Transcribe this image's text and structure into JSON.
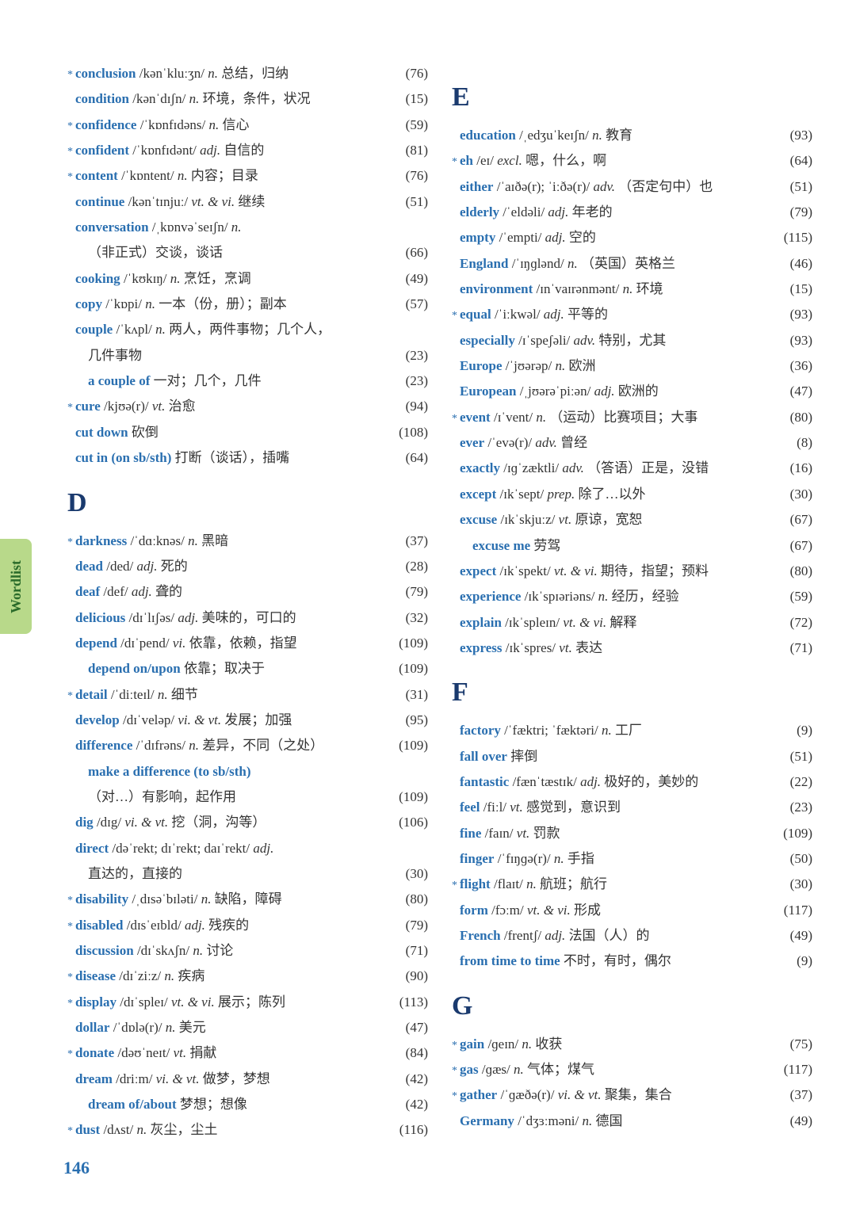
{
  "tab_label": "Wordlist",
  "page_number": "146",
  "colors": {
    "word_color": "#2a6fb0",
    "text_color": "#333333",
    "section_color": "#1a3a6e",
    "tab_bg": "#b8d98a",
    "tab_text": "#2a6b2a",
    "background": "#ffffff"
  },
  "typography": {
    "body_fontsize": 17,
    "section_fontsize": 34,
    "line_height": 1.55
  },
  "left": [
    {
      "star": true,
      "word": "conclusion",
      "pron": "/kənˈkluːʒn/",
      "pos": "n.",
      "def": "总结，归纳",
      "page": "76"
    },
    {
      "star": false,
      "word": "condition",
      "pron": "/kənˈdɪʃn/",
      "pos": "n.",
      "def": "环境，条件，状况",
      "page": "15"
    },
    {
      "star": true,
      "word": "confidence",
      "pron": "/ˈkɒnfɪdəns/",
      "pos": "n.",
      "def": "信心",
      "page": "59"
    },
    {
      "star": true,
      "word": "confident",
      "pron": "/ˈkɒnfɪdənt/",
      "pos": "adj.",
      "def": "自信的",
      "page": "81"
    },
    {
      "star": true,
      "word": "content",
      "pron": "/ˈkɒntent/",
      "pos": "n.",
      "def": "内容；目录",
      "page": "76"
    },
    {
      "star": false,
      "word": "continue",
      "pron": "/kənˈtɪnjuː/",
      "pos": "vt. & vi.",
      "def": "继续",
      "page": "51"
    },
    {
      "star": false,
      "word": "conversation",
      "pron": "/ˌkɒnvəˈseɪʃn/",
      "pos": "n.",
      "def": "",
      "page": ""
    },
    {
      "star": false,
      "word": "",
      "pron": "",
      "pos": "",
      "def": "（非正式）交谈，谈话",
      "page": "66",
      "indent": true,
      "plain": true
    },
    {
      "star": false,
      "word": "cooking",
      "pron": "/ˈkʊkɪŋ/",
      "pos": "n.",
      "def": "烹饪，烹调",
      "page": "49"
    },
    {
      "star": false,
      "word": "copy",
      "pron": "/ˈkɒpi/",
      "pos": "n.",
      "def": "一本（份，册）；副本",
      "page": "57"
    },
    {
      "star": false,
      "word": "couple",
      "pron": "/ˈkʌpl/",
      "pos": "n.",
      "def": "两人，两件事物；几个人，",
      "page": ""
    },
    {
      "star": false,
      "word": "",
      "pron": "",
      "pos": "",
      "def": "几件事物",
      "page": "23",
      "indent": true,
      "plain": true
    },
    {
      "star": false,
      "word": "a couple of",
      "pron": "",
      "pos": "",
      "def": "一对；几个，几件",
      "page": "23",
      "indent": true
    },
    {
      "star": true,
      "word": "cure",
      "pron": "/kjʊə(r)/",
      "pos": "vt.",
      "def": "治愈",
      "page": "94"
    },
    {
      "star": false,
      "word": "cut down",
      "pron": "",
      "pos": "",
      "def": "砍倒",
      "page": "108"
    },
    {
      "star": false,
      "word": "cut in (on sb/sth)",
      "pron": "",
      "pos": "",
      "def": "打断（谈话），插嘴",
      "page": "64"
    }
  ],
  "section_D": "D",
  "d_list": [
    {
      "star": true,
      "word": "darkness",
      "pron": "/ˈdɑːknəs/",
      "pos": "n.",
      "def": "黑暗",
      "page": "37"
    },
    {
      "star": false,
      "word": "dead",
      "pron": "/ded/",
      "pos": "adj.",
      "def": "死的",
      "page": "28"
    },
    {
      "star": false,
      "word": "deaf",
      "pron": "/def/",
      "pos": "adj.",
      "def": "聋的",
      "page": "79"
    },
    {
      "star": false,
      "word": "delicious",
      "pron": "/dɪˈlɪʃəs/",
      "pos": "adj.",
      "def": "美味的，可口的",
      "page": "32"
    },
    {
      "star": false,
      "word": "depend",
      "pron": "/dɪˈpend/",
      "pos": "vi.",
      "def": "依靠，依赖，指望",
      "page": "109"
    },
    {
      "star": false,
      "word": "depend on/upon",
      "pron": "",
      "pos": "",
      "def": "依靠；取决于",
      "page": "109",
      "indent": true
    },
    {
      "star": true,
      "word": "detail",
      "pron": "/ˈdiːteɪl/",
      "pos": "n.",
      "def": "细节",
      "page": "31"
    },
    {
      "star": false,
      "word": "develop",
      "pron": "/dɪˈveləp/",
      "pos": "vi. & vt.",
      "def": "发展；加强",
      "page": "95"
    },
    {
      "star": false,
      "word": "difference",
      "pron": "/ˈdɪfrəns/",
      "pos": "n.",
      "def": "差异，不同（之处）",
      "page": "109"
    },
    {
      "star": false,
      "word": "make a difference (to sb/sth)",
      "pron": "",
      "pos": "",
      "def": "",
      "page": "",
      "indent": true
    },
    {
      "star": false,
      "word": "",
      "pron": "",
      "pos": "",
      "def": "（对…）有影响，起作用",
      "page": "109",
      "indent": true,
      "plain": true
    },
    {
      "star": false,
      "word": "dig",
      "pron": "/dɪg/",
      "pos": "vi. & vt.",
      "def": "挖（洞，沟等）",
      "page": "106"
    },
    {
      "star": false,
      "word": "direct",
      "pron": "/dəˈrekt; dɪˈrekt; daɪˈrekt/",
      "pos": "adj.",
      "def": "",
      "page": ""
    },
    {
      "star": false,
      "word": "",
      "pron": "",
      "pos": "",
      "def": "直达的，直接的",
      "page": "30",
      "indent": true,
      "plain": true
    },
    {
      "star": true,
      "word": "disability",
      "pron": "/ˌdɪsəˈbɪləti/",
      "pos": "n.",
      "def": "缺陷，障碍",
      "page": "80"
    },
    {
      "star": true,
      "word": "disabled",
      "pron": "/dɪsˈeɪbld/",
      "pos": "adj.",
      "def": "残疾的",
      "page": "79"
    },
    {
      "star": false,
      "word": "discussion",
      "pron": "/dɪˈskʌʃn/",
      "pos": "n.",
      "def": "讨论",
      "page": "71"
    },
    {
      "star": true,
      "word": "disease",
      "pron": "/dɪˈziːz/",
      "pos": "n.",
      "def": "疾病",
      "page": "90"
    },
    {
      "star": true,
      "word": "display",
      "pron": "/dɪˈspleɪ/",
      "pos": "vt. & vi.",
      "def": "展示；陈列",
      "page": "113"
    },
    {
      "star": false,
      "word": "dollar",
      "pron": "/ˈdɒlə(r)/",
      "pos": "n.",
      "def": "美元",
      "page": "47"
    },
    {
      "star": true,
      "word": "donate",
      "pron": "/dəʊˈneɪt/",
      "pos": "vt.",
      "def": "捐献",
      "page": "84"
    },
    {
      "star": false,
      "word": "dream",
      "pron": "/driːm/",
      "pos": "vi. & vt.",
      "def": "做梦，梦想",
      "page": "42"
    },
    {
      "star": false,
      "word": "dream of/about",
      "pron": "",
      "pos": "",
      "def": "梦想；想像",
      "page": "42",
      "indent": true
    },
    {
      "star": true,
      "word": "dust",
      "pron": "/dʌst/",
      "pos": "n.",
      "def": "灰尘，尘土",
      "page": "116"
    }
  ],
  "section_E": "E",
  "e_list": [
    {
      "star": false,
      "word": "education",
      "pron": "/ˌedʒuˈkeɪʃn/",
      "pos": "n.",
      "def": "教育",
      "page": "93"
    },
    {
      "star": true,
      "word": "eh",
      "pron": "/eɪ/",
      "pos": "excl.",
      "def": "嗯，什么，啊",
      "page": "64"
    },
    {
      "star": false,
      "word": "either",
      "pron": "/ˈaɪðə(r); ˈiːðə(r)/",
      "pos": "adv.",
      "def": "（否定句中）也",
      "page": "51"
    },
    {
      "star": false,
      "word": "elderly",
      "pron": "/ˈeldəli/",
      "pos": "adj.",
      "def": "年老的",
      "page": "79"
    },
    {
      "star": false,
      "word": "empty",
      "pron": "/ˈempti/",
      "pos": "adj.",
      "def": "空的",
      "page": "115"
    },
    {
      "star": false,
      "word": "England",
      "pron": "/ˈɪŋɡlənd/",
      "pos": "n.",
      "def": "（英国）英格兰",
      "page": "46"
    },
    {
      "star": false,
      "word": "environment",
      "pron": "/ɪnˈvaɪrənmənt/",
      "pos": "n.",
      "def": "环境",
      "page": "15"
    },
    {
      "star": true,
      "word": "equal",
      "pron": "/ˈiːkwəl/",
      "pos": "adj.",
      "def": "平等的",
      "page": "93"
    },
    {
      "star": false,
      "word": "especially",
      "pron": "/ɪˈspeʃəli/",
      "pos": "adv.",
      "def": "特别，尤其",
      "page": "93"
    },
    {
      "star": false,
      "word": "Europe",
      "pron": "/ˈjʊərəp/",
      "pos": "n.",
      "def": "欧洲",
      "page": "36"
    },
    {
      "star": false,
      "word": "European",
      "pron": "/ˌjʊərəˈpiːən/",
      "pos": "adj.",
      "def": "欧洲的",
      "page": "47"
    },
    {
      "star": true,
      "word": "event",
      "pron": "/ɪˈvent/",
      "pos": "n.",
      "def": "（运动）比赛项目；大事",
      "page": "80"
    },
    {
      "star": false,
      "word": "ever",
      "pron": "/ˈevə(r)/",
      "pos": "adv.",
      "def": "曾经",
      "page": "8"
    },
    {
      "star": false,
      "word": "exactly",
      "pron": "/ɪɡˈzæktli/",
      "pos": "adv.",
      "def": "（答语）正是，没错",
      "page": "16"
    },
    {
      "star": false,
      "word": "except",
      "pron": "/ɪkˈsept/",
      "pos": "prep.",
      "def": "除了…以外",
      "page": "30"
    },
    {
      "star": false,
      "word": "excuse",
      "pron": "/ɪkˈskjuːz/",
      "pos": "vt.",
      "def": "原谅，宽恕",
      "page": "67"
    },
    {
      "star": false,
      "word": "excuse me",
      "pron": "",
      "pos": "",
      "def": "劳驾",
      "page": "67",
      "indent": true
    },
    {
      "star": false,
      "word": "expect",
      "pron": "/ɪkˈspekt/",
      "pos": "vt. & vi.",
      "def": "期待，指望；预料",
      "page": "80"
    },
    {
      "star": false,
      "word": "experience",
      "pron": "/ɪkˈspɪəriəns/",
      "pos": "n.",
      "def": "经历，经验",
      "page": "59"
    },
    {
      "star": false,
      "word": "explain",
      "pron": "/ɪkˈspleɪn/",
      "pos": "vt. & vi.",
      "def": "解释",
      "page": "72"
    },
    {
      "star": false,
      "word": "express",
      "pron": "/ɪkˈspres/",
      "pos": "vt.",
      "def": "表达",
      "page": "71"
    }
  ],
  "section_F": "F",
  "f_list": [
    {
      "star": false,
      "word": "factory",
      "pron": "/ˈfæktri; ˈfæktəri/",
      "pos": "n.",
      "def": "工厂",
      "page": "9"
    },
    {
      "star": false,
      "word": "fall over",
      "pron": "",
      "pos": "",
      "def": "摔倒",
      "page": "51"
    },
    {
      "star": false,
      "word": "fantastic",
      "pron": "/fænˈtæstɪk/",
      "pos": "adj.",
      "def": "极好的，美妙的",
      "page": "22"
    },
    {
      "star": false,
      "word": "feel",
      "pron": "/fiːl/",
      "pos": "vt.",
      "def": "感觉到，意识到",
      "page": "23"
    },
    {
      "star": false,
      "word": "fine",
      "pron": "/faɪn/",
      "pos": "vt.",
      "def": "罚款",
      "page": "109"
    },
    {
      "star": false,
      "word": "finger",
      "pron": "/ˈfɪŋɡə(r)/",
      "pos": "n.",
      "def": "手指",
      "page": "50"
    },
    {
      "star": true,
      "word": "flight",
      "pron": "/flaɪt/",
      "pos": "n.",
      "def": "航班；航行",
      "page": "30"
    },
    {
      "star": false,
      "word": "form",
      "pron": "/fɔːm/",
      "pos": "vt. & vi.",
      "def": "形成",
      "page": "117"
    },
    {
      "star": false,
      "word": "French",
      "pron": "/frentʃ/",
      "pos": "adj.",
      "def": "法国（人）的",
      "page": "49"
    },
    {
      "star": false,
      "word": "from time to time",
      "pron": "",
      "pos": "",
      "def": "不时，有时，偶尔",
      "page": "9"
    }
  ],
  "section_G": "G",
  "g_list": [
    {
      "star": true,
      "word": "gain",
      "pron": "/ɡeɪn/",
      "pos": "n.",
      "def": "收获",
      "page": "75"
    },
    {
      "star": true,
      "word": "gas",
      "pron": "/ɡæs/",
      "pos": "n.",
      "def": "气体；煤气",
      "page": "117"
    },
    {
      "star": true,
      "word": "gather",
      "pron": "/ˈɡæðə(r)/",
      "pos": "vi. & vt.",
      "def": "聚集，集合",
      "page": "37"
    },
    {
      "star": false,
      "word": "Germany",
      "pron": "/ˈdʒɜːməni/",
      "pos": "n.",
      "def": "德国",
      "page": "49"
    }
  ]
}
